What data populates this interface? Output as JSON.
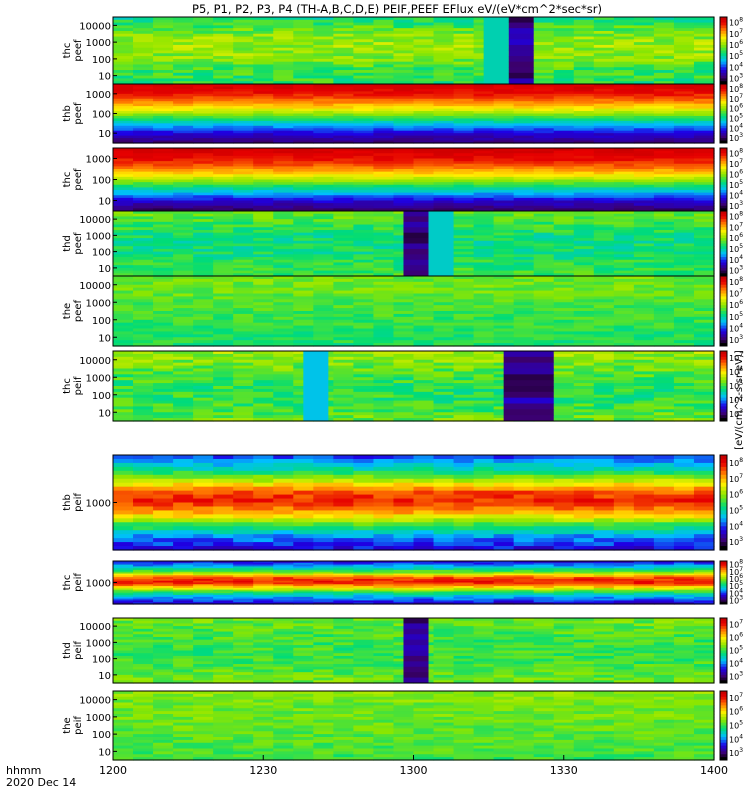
{
  "chart_data": {
    "type": "heatmap",
    "title": "P5, P1, P2, P3, P4 (TH-A,B,C,D,E) PEIF,PEEF EFlux eV/(eV*cm^2*sec*sr)",
    "time_label": "hhmm",
    "date_label": "2020 Dec 14",
    "x_ticks": [
      "1200",
      "1230",
      "1300",
      "1330",
      "1400"
    ],
    "x_range_hhmm": [
      "1200",
      "1400"
    ],
    "colorbar_label": "[eV/(cm^2-s-sr-eV)]",
    "panels": [
      {
        "probe": "thc",
        "instrument": "peef",
        "y_ticks": [
          "10",
          "100",
          "1000",
          "10000"
        ],
        "cbar_ticks": [
          "10^3",
          "10^4",
          "10^5",
          "10^6",
          "10^7",
          "10^8"
        ],
        "bands": [
          0.45,
          0.55,
          0.6,
          0.58,
          0.5,
          0.48
        ],
        "noise": 0.07,
        "events": [
          {
            "start": "1319",
            "end": "1324",
            "value": 0.05,
            "style": "dark"
          },
          {
            "start": "1314",
            "end": "1319",
            "value": 0.4,
            "style": "plain"
          }
        ]
      },
      {
        "probe": "thb",
        "instrument": "peef",
        "y_ticks": [
          "10",
          "100",
          "1000"
        ],
        "cbar_ticks": [
          "10^3",
          "10^4",
          "10^5",
          "10^6",
          "10^7",
          "10^8"
        ],
        "bands": [
          0.97,
          0.92,
          0.82,
          0.68,
          0.5,
          0.32,
          0.18,
          0.1
        ],
        "noise": 0.03,
        "events": []
      },
      {
        "probe": "thc",
        "instrument": "peef",
        "y_ticks": [
          "10",
          "100",
          "1000"
        ],
        "cbar_ticks": [
          "10^3",
          "10^4",
          "10^5",
          "10^6",
          "10^7",
          "10^8"
        ],
        "bands": [
          0.97,
          0.93,
          0.84,
          0.7,
          0.52,
          0.34,
          0.18,
          0.08
        ],
        "noise": 0.03,
        "events": []
      },
      {
        "probe": "thd",
        "instrument": "peef",
        "y_ticks": [
          "10",
          "100",
          "1000",
          "10000"
        ],
        "cbar_ticks": [
          "10^3",
          "10^4",
          "10^5",
          "10^6",
          "10^7",
          "10^8"
        ],
        "bands": [
          0.55,
          0.5,
          0.45,
          0.45,
          0.48,
          0.5
        ],
        "noise": 0.06,
        "events": [
          {
            "start": "1258",
            "end": "1303",
            "value": 0.04,
            "style": "dark"
          },
          {
            "start": "1303",
            "end": "1308",
            "value": 0.38,
            "style": "plain"
          }
        ]
      },
      {
        "probe": "the",
        "instrument": "peef",
        "y_ticks": [
          "10",
          "100",
          "1000",
          "10000"
        ],
        "cbar_ticks": [
          "10^3",
          "10^4",
          "10^5",
          "10^6",
          "10^7",
          "10^8"
        ],
        "bands": [
          0.55,
          0.55,
          0.52,
          0.5,
          0.48,
          0.47
        ],
        "noise": 0.05,
        "events": []
      },
      {
        "probe": "thc",
        "instrument": "peif",
        "y_ticks": [
          "10",
          "100",
          "1000",
          "10000"
        ],
        "cbar_ticks": [
          "10^3",
          "10^4",
          "10^5",
          "10^6",
          "10^7"
        ],
        "bands": [
          0.6,
          0.55,
          0.5,
          0.48,
          0.5,
          0.55
        ],
        "noise": 0.07,
        "events": [
          {
            "start": "1318",
            "end": "1328",
            "value": 0.05,
            "style": "dark"
          },
          {
            "start": "1238",
            "end": "1243",
            "value": 0.35,
            "style": "plain"
          }
        ]
      },
      {
        "probe": "thb",
        "instrument": "peif",
        "y_ticks": [
          "1000"
        ],
        "cbar_ticks": [
          "10^3",
          "10^4",
          "10^5",
          "10^6",
          "10^7",
          "10^8"
        ],
        "bands": [
          0.25,
          0.4,
          0.6,
          0.85,
          0.9,
          0.75,
          0.5,
          0.3,
          0.2
        ],
        "noise": 0.05,
        "events": []
      },
      {
        "probe": "thc",
        "instrument": "peif",
        "y_ticks": [
          "1000"
        ],
        "cbar_ticks": [
          "10^3",
          "10^4",
          "10^5",
          "10^6",
          "10^7",
          "10^8"
        ],
        "bands": [
          0.2,
          0.35,
          0.55,
          0.85,
          0.92,
          0.7,
          0.45,
          0.3,
          0.18
        ],
        "noise": 0.05,
        "events": []
      },
      {
        "probe": "thd",
        "instrument": "peif",
        "y_ticks": [
          "10",
          "100",
          "1000",
          "10000"
        ],
        "cbar_ticks": [
          "10^3",
          "10^4",
          "10^5",
          "10^6",
          "10^7"
        ],
        "bands": [
          0.55,
          0.52,
          0.5,
          0.5,
          0.52,
          0.55
        ],
        "noise": 0.06,
        "events": [
          {
            "start": "1258",
            "end": "1303",
            "value": 0.04,
            "style": "dark"
          }
        ]
      },
      {
        "probe": "the",
        "instrument": "peif",
        "y_ticks": [
          "10",
          "100",
          "1000",
          "10000"
        ],
        "cbar_ticks": [
          "10^3",
          "10^4",
          "10^5",
          "10^6",
          "10^7"
        ],
        "bands": [
          0.58,
          0.55,
          0.55,
          0.53,
          0.52,
          0.5
        ],
        "noise": 0.05,
        "events": []
      }
    ]
  }
}
